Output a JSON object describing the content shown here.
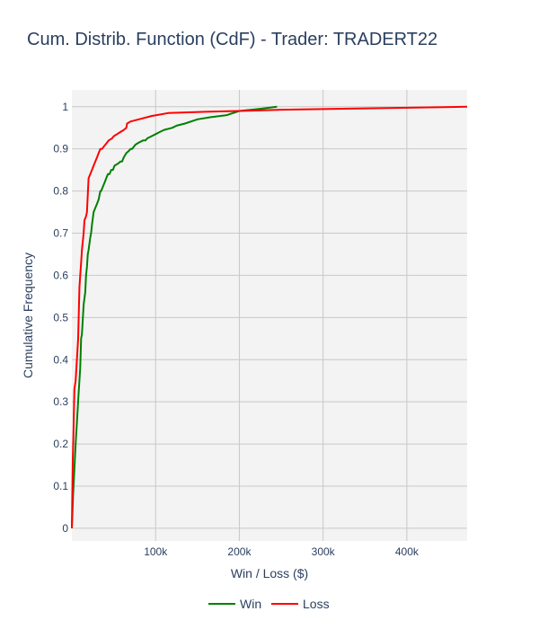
{
  "chart_data": {
    "type": "line",
    "title": "Cum. Distrib. Function (CdF) - Trader: TRADERT22",
    "xlabel": "Win / Loss ($)",
    "ylabel": "Cumulative Frequency",
    "xlim": [
      0,
      472000
    ],
    "ylim": [
      -0.03,
      1.04
    ],
    "x_ticks": [
      100000,
      200000,
      300000,
      400000
    ],
    "x_tick_labels": [
      "100k",
      "200k",
      "300k",
      "400k"
    ],
    "y_ticks": [
      0,
      0.1,
      0.2,
      0.3,
      0.4,
      0.5,
      0.6,
      0.7,
      0.8,
      0.9,
      1
    ],
    "y_tick_labels": [
      "0",
      "0.1",
      "0.2",
      "0.3",
      "0.4",
      "0.5",
      "0.6",
      "0.7",
      "0.8",
      "0.9",
      "1"
    ],
    "grid": true,
    "legend_position": "bottom-center",
    "colors": {
      "plot_bg": "#f3f3f3",
      "grid": "#c8c8c8",
      "text": "#2a3f5f"
    },
    "series": [
      {
        "name": "Win",
        "color": "#008000",
        "x": [
          0,
          1500,
          3000,
          4500,
          6000,
          8000,
          10000,
          11000,
          12000,
          14000,
          16000,
          17000,
          18000,
          19000,
          20000,
          22000,
          23000,
          24000,
          26000,
          28000,
          30000,
          32000,
          34000,
          35000,
          37000,
          39000,
          41000,
          43000,
          44000,
          45000,
          47000,
          49000,
          51000,
          55000,
          58000,
          60000,
          62000,
          65000,
          68000,
          70000,
          72000,
          74000,
          76000,
          80000,
          85000,
          88000,
          90000,
          95000,
          100000,
          105000,
          110000,
          120000,
          125000,
          135000,
          150000,
          165000,
          185000,
          200000,
          225000,
          245000
        ],
        "y": [
          0,
          0.08,
          0.14,
          0.2,
          0.25,
          0.32,
          0.38,
          0.45,
          0.46,
          0.53,
          0.56,
          0.6,
          0.62,
          0.65,
          0.66,
          0.69,
          0.7,
          0.72,
          0.75,
          0.76,
          0.77,
          0.78,
          0.8,
          0.8,
          0.81,
          0.82,
          0.83,
          0.84,
          0.84,
          0.84,
          0.85,
          0.85,
          0.86,
          0.865,
          0.87,
          0.87,
          0.88,
          0.89,
          0.895,
          0.9,
          0.9,
          0.905,
          0.91,
          0.915,
          0.92,
          0.92,
          0.925,
          0.93,
          0.935,
          0.94,
          0.945,
          0.95,
          0.955,
          0.96,
          0.97,
          0.975,
          0.98,
          0.99,
          0.995,
          1.0
        ]
      },
      {
        "name": "Loss",
        "color": "#ff0000",
        "x": [
          0,
          1000,
          2000,
          3000,
          4500,
          6000,
          7500,
          9000,
          10000,
          11000,
          12000,
          14000,
          15000,
          17000,
          18000,
          20000,
          22000,
          24000,
          26000,
          28000,
          30000,
          32000,
          34000,
          36000,
          38000,
          40000,
          42000,
          44000,
          48000,
          50000,
          54000,
          58000,
          62000,
          65000,
          66000,
          70000,
          80000,
          95000,
          115000,
          160000,
          200000,
          250000,
          350000,
          472000
        ],
        "y": [
          0,
          0.15,
          0.24,
          0.33,
          0.35,
          0.4,
          0.45,
          0.57,
          0.6,
          0.63,
          0.66,
          0.7,
          0.73,
          0.74,
          0.75,
          0.83,
          0.84,
          0.85,
          0.86,
          0.87,
          0.88,
          0.89,
          0.9,
          0.9,
          0.905,
          0.91,
          0.915,
          0.92,
          0.925,
          0.93,
          0.935,
          0.94,
          0.945,
          0.95,
          0.96,
          0.965,
          0.97,
          0.978,
          0.985,
          0.988,
          0.99,
          0.993,
          0.996,
          1.0
        ]
      }
    ]
  }
}
